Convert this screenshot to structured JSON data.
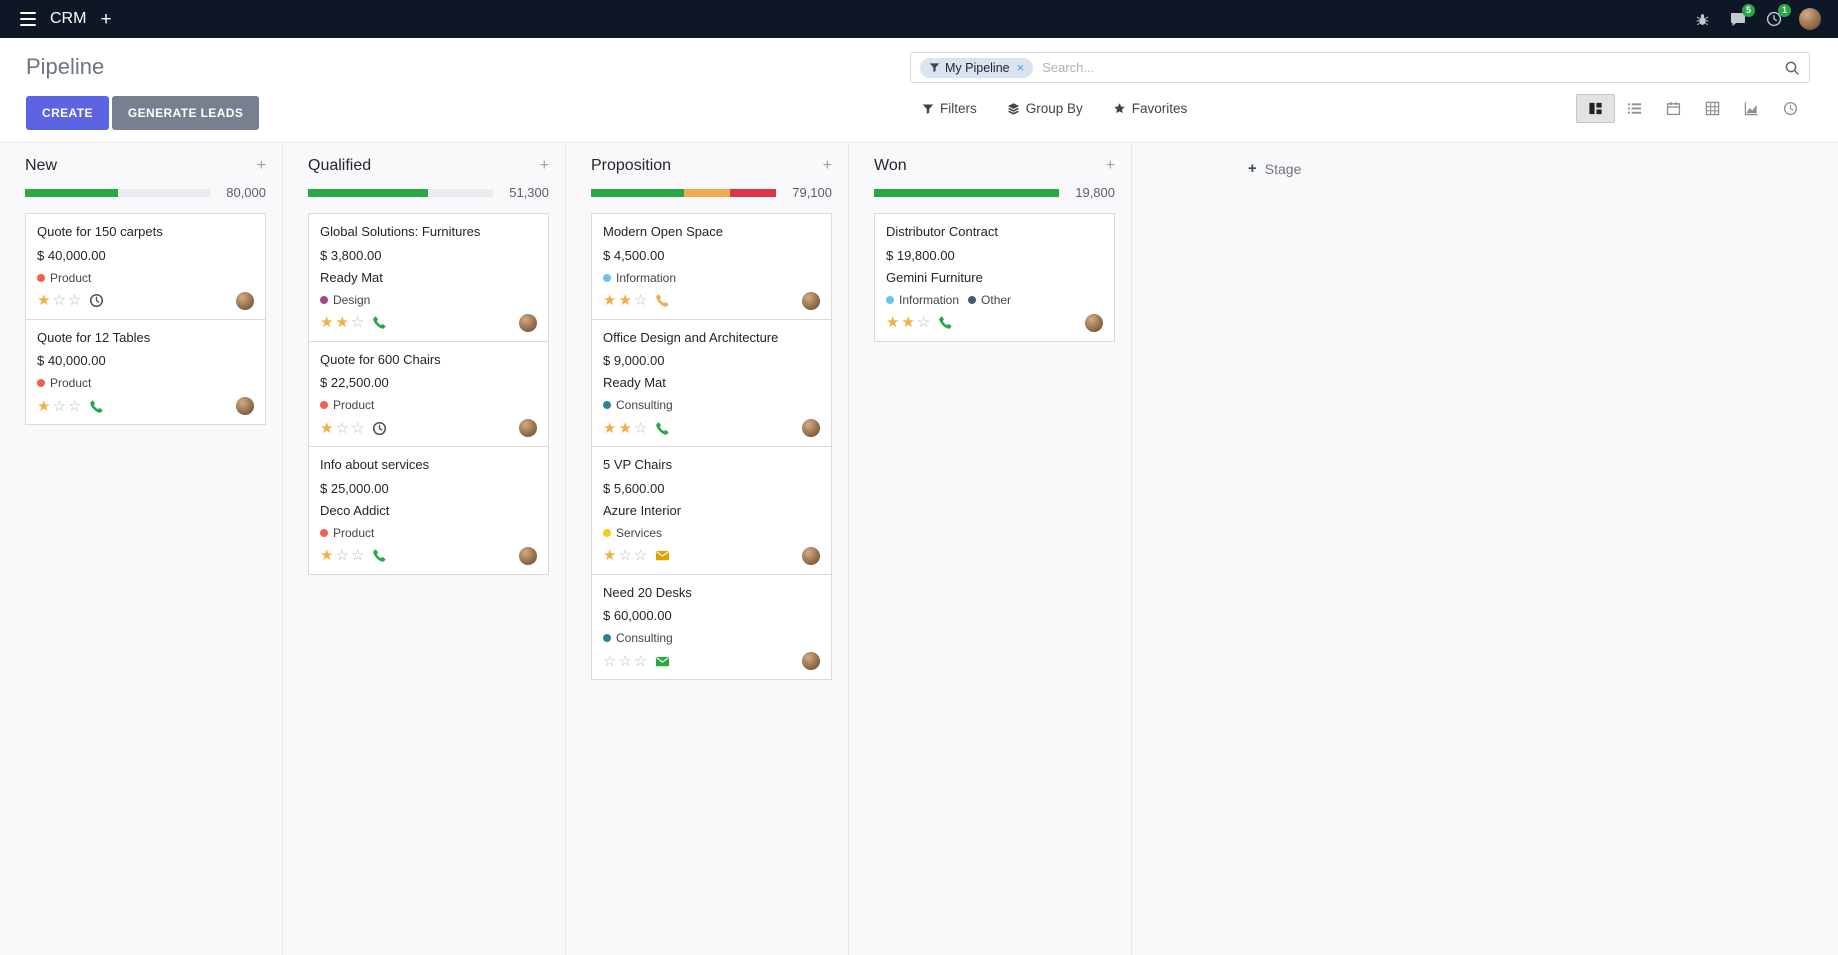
{
  "theme": {
    "topbar_bg": "#0e1726",
    "primary": "#5c64e4",
    "secondary": "#76808f",
    "star_on": "#efb041",
    "body_bg": "#f9f9fb"
  },
  "topbar": {
    "app_name": "CRM",
    "messages_badge": "5",
    "activities_badge": "1",
    "icons": [
      "hamburger-icon",
      "plus-icon",
      "bug-icon",
      "chat-icon",
      "clock-icon",
      "avatar"
    ]
  },
  "control_panel": {
    "title": "Pipeline",
    "buttons": {
      "create": "CREATE",
      "generate_leads": "GENERATE LEADS"
    },
    "search": {
      "facet_label": "My Pipeline",
      "facet_remove": "×",
      "placeholder": "Search..."
    },
    "filter_buttons": [
      {
        "id": "filters",
        "label": "Filters",
        "icon": "filter-icon"
      },
      {
        "id": "group-by",
        "label": "Group By",
        "icon": "group-by-icon"
      },
      {
        "id": "favorites",
        "label": "Favorites",
        "icon": "favorites-star-icon"
      }
    ],
    "view_switcher": [
      {
        "id": "kanban",
        "icon": "kanban-view-icon",
        "active": true
      },
      {
        "id": "list",
        "icon": "list-view-icon",
        "active": false
      },
      {
        "id": "calendar",
        "icon": "calendar-view-icon",
        "active": false
      },
      {
        "id": "pivot",
        "icon": "pivot-view-icon",
        "active": false
      },
      {
        "id": "graph",
        "icon": "graph-view-icon",
        "active": false
      },
      {
        "id": "activity",
        "icon": "activity-view-icon",
        "active": false
      }
    ]
  },
  "board": {
    "add_stage_label": "Stage",
    "columns": [
      {
        "name": "New",
        "total": "80,000",
        "progress": [
          {
            "color": "#28a745",
            "pct": 50
          }
        ],
        "cards": [
          {
            "title": "Quote for 150 carpets",
            "amount": "$ 40,000.00",
            "partner": null,
            "tags": [
              {
                "label": "Product",
                "color": "#f06050"
              }
            ],
            "stars": 1,
            "activity_icon": "clock",
            "activity_color": "#495057"
          },
          {
            "title": "Quote for 12 Tables",
            "amount": "$ 40,000.00",
            "partner": null,
            "tags": [
              {
                "label": "Product",
                "color": "#f06050"
              }
            ],
            "stars": 1,
            "activity_icon": "phone",
            "activity_color": "#28a745"
          }
        ]
      },
      {
        "name": "Qualified",
        "total": "51,300",
        "progress": [
          {
            "color": "#28a745",
            "pct": 65
          }
        ],
        "cards": [
          {
            "title": "Global Solutions: Furnitures",
            "amount": "$ 3,800.00",
            "partner": "Ready Mat",
            "tags": [
              {
                "label": "Design",
                "color": "#a3478a"
              }
            ],
            "stars": 2,
            "activity_icon": "phone",
            "activity_color": "#28a745"
          },
          {
            "title": "Quote for 600 Chairs",
            "amount": "$ 22,500.00",
            "partner": null,
            "tags": [
              {
                "label": "Product",
                "color": "#f06050"
              }
            ],
            "stars": 1,
            "activity_icon": "clock",
            "activity_color": "#495057"
          },
          {
            "title": "Info about services",
            "amount": "$ 25,000.00",
            "partner": "Deco Addict",
            "tags": [
              {
                "label": "Product",
                "color": "#f06050"
              }
            ],
            "stars": 1,
            "activity_icon": "phone",
            "activity_color": "#28a745"
          }
        ]
      },
      {
        "name": "Proposition",
        "total": "79,100",
        "progress": [
          {
            "color": "#28a745",
            "pct": 50
          },
          {
            "color": "#f0ad4e",
            "pct": 25
          },
          {
            "color": "#dc3545",
            "pct": 25
          }
        ],
        "cards": [
          {
            "title": "Modern Open Space",
            "amount": "$ 4,500.00",
            "partner": null,
            "tags": [
              {
                "label": "Information",
                "color": "#6cc1ed"
              }
            ],
            "stars": 2,
            "activity_icon": "phone",
            "activity_color": "#f0ad4e"
          },
          {
            "title": "Office Design and Architecture",
            "amount": "$ 9,000.00",
            "partner": "Ready Mat",
            "tags": [
              {
                "label": "Consulting",
                "color": "#2c8397"
              }
            ],
            "stars": 2,
            "activity_icon": "phone",
            "activity_color": "#28a745"
          },
          {
            "title": "5 VP Chairs",
            "amount": "$ 5,600.00",
            "partner": "Azure Interior",
            "tags": [
              {
                "label": "Services",
                "color": "#f7cd1f"
              }
            ],
            "stars": 1,
            "activity_icon": "envelope",
            "activity_color": "#dfa300"
          },
          {
            "title": "Need 20 Desks",
            "amount": "$ 60,000.00",
            "partner": null,
            "tags": [
              {
                "label": "Consulting",
                "color": "#2c8397"
              }
            ],
            "stars": 0,
            "activity_icon": "envelope",
            "activity_color": "#28a745"
          }
        ]
      },
      {
        "name": "Won",
        "total": "19,800",
        "progress": [
          {
            "color": "#28a745",
            "pct": 100
          }
        ],
        "cards": [
          {
            "title": "Distributor Contract",
            "amount": "$ 19,800.00",
            "partner": "Gemini Furniture",
            "tags": [
              {
                "label": "Information",
                "color": "#6cc1ed"
              },
              {
                "label": "Other",
                "color": "#475577"
              }
            ],
            "stars": 2,
            "activity_icon": "phone",
            "activity_color": "#28a745"
          }
        ]
      }
    ]
  }
}
